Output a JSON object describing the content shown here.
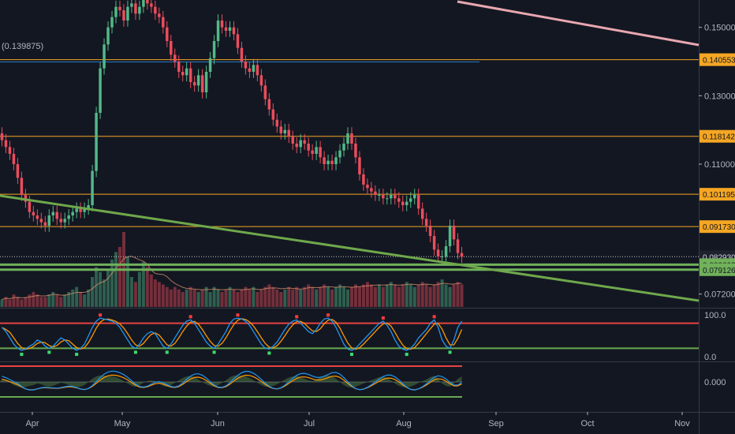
{
  "colors": {
    "background": "#131722",
    "up": "#53b987",
    "down": "#eb4d5c",
    "level_line": "#f5a623",
    "support_line": "#70b15a",
    "trend_line_green": "#6fa84b",
    "trend_line_pink": "#e8a7b0",
    "blue_line": "#2196f3",
    "axis_text": "#b2b5be",
    "stoch_k": "#2196f3",
    "stoch_d": "#ff9800",
    "band_red": "#e84343",
    "band_green": "#6aa84f"
  },
  "chart_data": {
    "type": "candlestick",
    "x_axis": {
      "labels": [
        "Apr",
        "May",
        "Jun",
        "Jul",
        "Aug",
        "Sep",
        "Oct",
        "Nov"
      ]
    },
    "price_axis": {
      "ticks": [
        "0.150000",
        "0.130000",
        "0.110000",
        "0.072000"
      ],
      "range": [
        0.068,
        0.158
      ]
    },
    "blue_line_label": "(0.139875)",
    "blue_line_value": 0.139875,
    "price_tags": [
      {
        "label": "0.140553",
        "value": 0.140553,
        "kind": "level"
      },
      {
        "label": "0.118142",
        "value": 0.118142,
        "kind": "level"
      },
      {
        "label": "0.101195",
        "value": 0.101195,
        "kind": "level"
      },
      {
        "label": "0.091730",
        "value": 0.09173,
        "kind": "level"
      },
      {
        "label": "0.082930",
        "value": 0.08293,
        "kind": "current"
      },
      {
        "label": "0.080602",
        "value": 0.080602,
        "kind": "support"
      },
      {
        "label": "0.079126",
        "value": 0.079126,
        "kind": "support"
      }
    ],
    "close_series": [
      0.117,
      0.115,
      0.113,
      0.11,
      0.106,
      0.101,
      0.099,
      0.096,
      0.095,
      0.094,
      0.093,
      0.092,
      0.095,
      0.096,
      0.094,
      0.093,
      0.094,
      0.095,
      0.096,
      0.097,
      0.096,
      0.097,
      0.098,
      0.108,
      0.125,
      0.138,
      0.145,
      0.15,
      0.153,
      0.156,
      0.155,
      0.152,
      0.156,
      0.157,
      0.154,
      0.156,
      0.158,
      0.157,
      0.156,
      0.154,
      0.153,
      0.15,
      0.146,
      0.142,
      0.14,
      0.137,
      0.136,
      0.138,
      0.134,
      0.133,
      0.136,
      0.131,
      0.137,
      0.141,
      0.146,
      0.152,
      0.15,
      0.149,
      0.15,
      0.148,
      0.144,
      0.14,
      0.138,
      0.137,
      0.139,
      0.136,
      0.133,
      0.129,
      0.126,
      0.123,
      0.121,
      0.119,
      0.12,
      0.118,
      0.116,
      0.115,
      0.117,
      0.116,
      0.114,
      0.113,
      0.115,
      0.112,
      0.11,
      0.111,
      0.11,
      0.112,
      0.114,
      0.116,
      0.119,
      0.116,
      0.112,
      0.107,
      0.104,
      0.103,
      0.102,
      0.101,
      0.101,
      0.1,
      0.1,
      0.101,
      0.1,
      0.099,
      0.098,
      0.099,
      0.1,
      0.101,
      0.097,
      0.094,
      0.092,
      0.089,
      0.085,
      0.083,
      0.083,
      0.086,
      0.092,
      0.088,
      0.084,
      0.0829
    ],
    "level_lines": [
      0.140553,
      0.118142,
      0.101195,
      0.09173
    ],
    "support_lines": [
      0.080602,
      0.079126
    ],
    "volume_values": [
      3,
      4,
      3,
      5,
      4,
      3,
      4,
      5,
      6,
      5,
      4,
      4,
      5,
      6,
      5,
      4,
      5,
      6,
      7,
      8,
      6,
      5,
      7,
      12,
      16,
      14,
      11,
      15,
      19,
      22,
      24,
      30,
      20,
      12,
      10,
      14,
      18,
      16,
      13,
      11,
      10,
      9,
      8,
      7,
      8,
      7,
      6,
      7,
      8,
      7,
      6,
      7,
      8,
      6,
      8,
      7,
      6,
      7,
      8,
      7,
      6,
      7,
      8,
      7,
      8,
      6,
      7,
      8,
      9,
      8,
      7,
      6,
      7,
      8,
      7,
      8,
      7,
      8,
      9,
      8,
      7,
      8,
      9,
      8,
      7,
      8,
      9,
      8,
      7,
      8,
      9,
      8,
      9,
      10,
      9,
      8,
      9,
      8,
      9,
      10,
      9,
      8,
      9,
      10,
      9,
      8,
      9,
      10,
      9,
      8,
      9,
      10,
      11,
      9,
      8,
      9,
      10,
      9
    ],
    "stoch_axis": {
      "ticks": [
        "100.0",
        "0.0"
      ]
    },
    "stoch_k": [
      70,
      60,
      45,
      30,
      20,
      15,
      18,
      25,
      30,
      40,
      35,
      25,
      20,
      25,
      35,
      45,
      40,
      30,
      20,
      15,
      20,
      30,
      50,
      70,
      85,
      92,
      90,
      88,
      85,
      80,
      70,
      55,
      40,
      25,
      20,
      30,
      45,
      55,
      60,
      55,
      40,
      25,
      20,
      30,
      45,
      60,
      75,
      85,
      88,
      80,
      65,
      50,
      35,
      25,
      20,
      30,
      45,
      60,
      80,
      90,
      92,
      90,
      85,
      75,
      60,
      45,
      30,
      20,
      18,
      25,
      35,
      50,
      65,
      78,
      85,
      88,
      80,
      70,
      60,
      55,
      65,
      80,
      90,
      92,
      85,
      70,
      50,
      30,
      18,
      15,
      20,
      30,
      40,
      50,
      60,
      70,
      80,
      85,
      75,
      60,
      40,
      25,
      18,
      15,
      20,
      30,
      45,
      55,
      65,
      80,
      88,
      70,
      40,
      25,
      20,
      40,
      70,
      85
    ],
    "stoch_upper": 80,
    "stoch_lower": 20,
    "osc_axis": {
      "ticks": [
        "0.000"
      ]
    }
  }
}
